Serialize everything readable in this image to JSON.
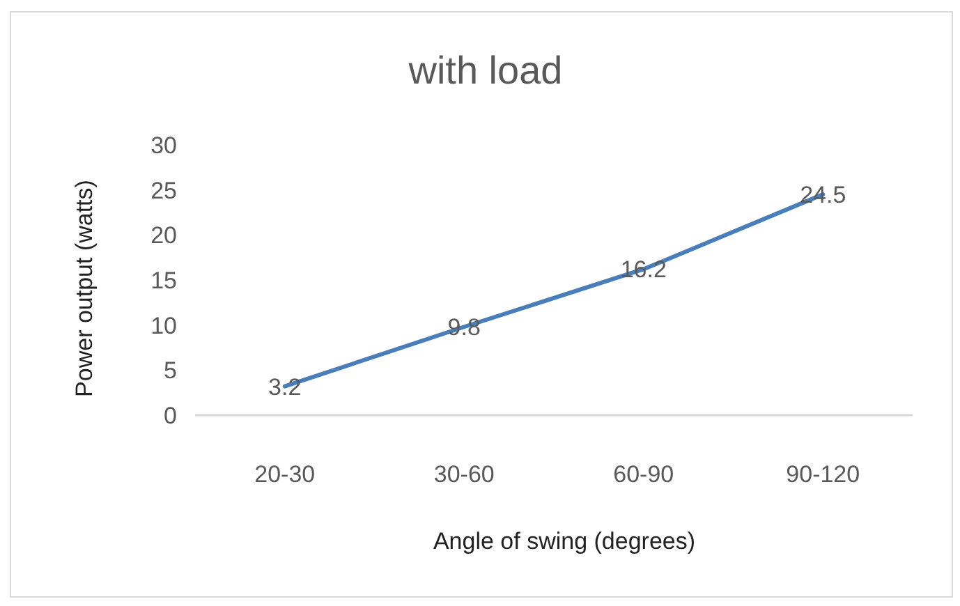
{
  "chart_data": {
    "type": "line",
    "title": "with load",
    "xlabel": "Angle of swing (degrees)",
    "ylabel": "Power output  (watts)",
    "categories": [
      "20-30",
      "30-60",
      "60-90",
      "90-120"
    ],
    "series": [
      {
        "color": "#4a7ebb",
        "values": [
          3.2,
          9.8,
          16.2,
          24.5
        ]
      }
    ],
    "ylim": [
      0,
      30
    ],
    "yticks": [
      0,
      5,
      10,
      15,
      20,
      25,
      30
    ],
    "grid": false,
    "marker": "none",
    "line_style": "solid",
    "data_labels": true
  }
}
